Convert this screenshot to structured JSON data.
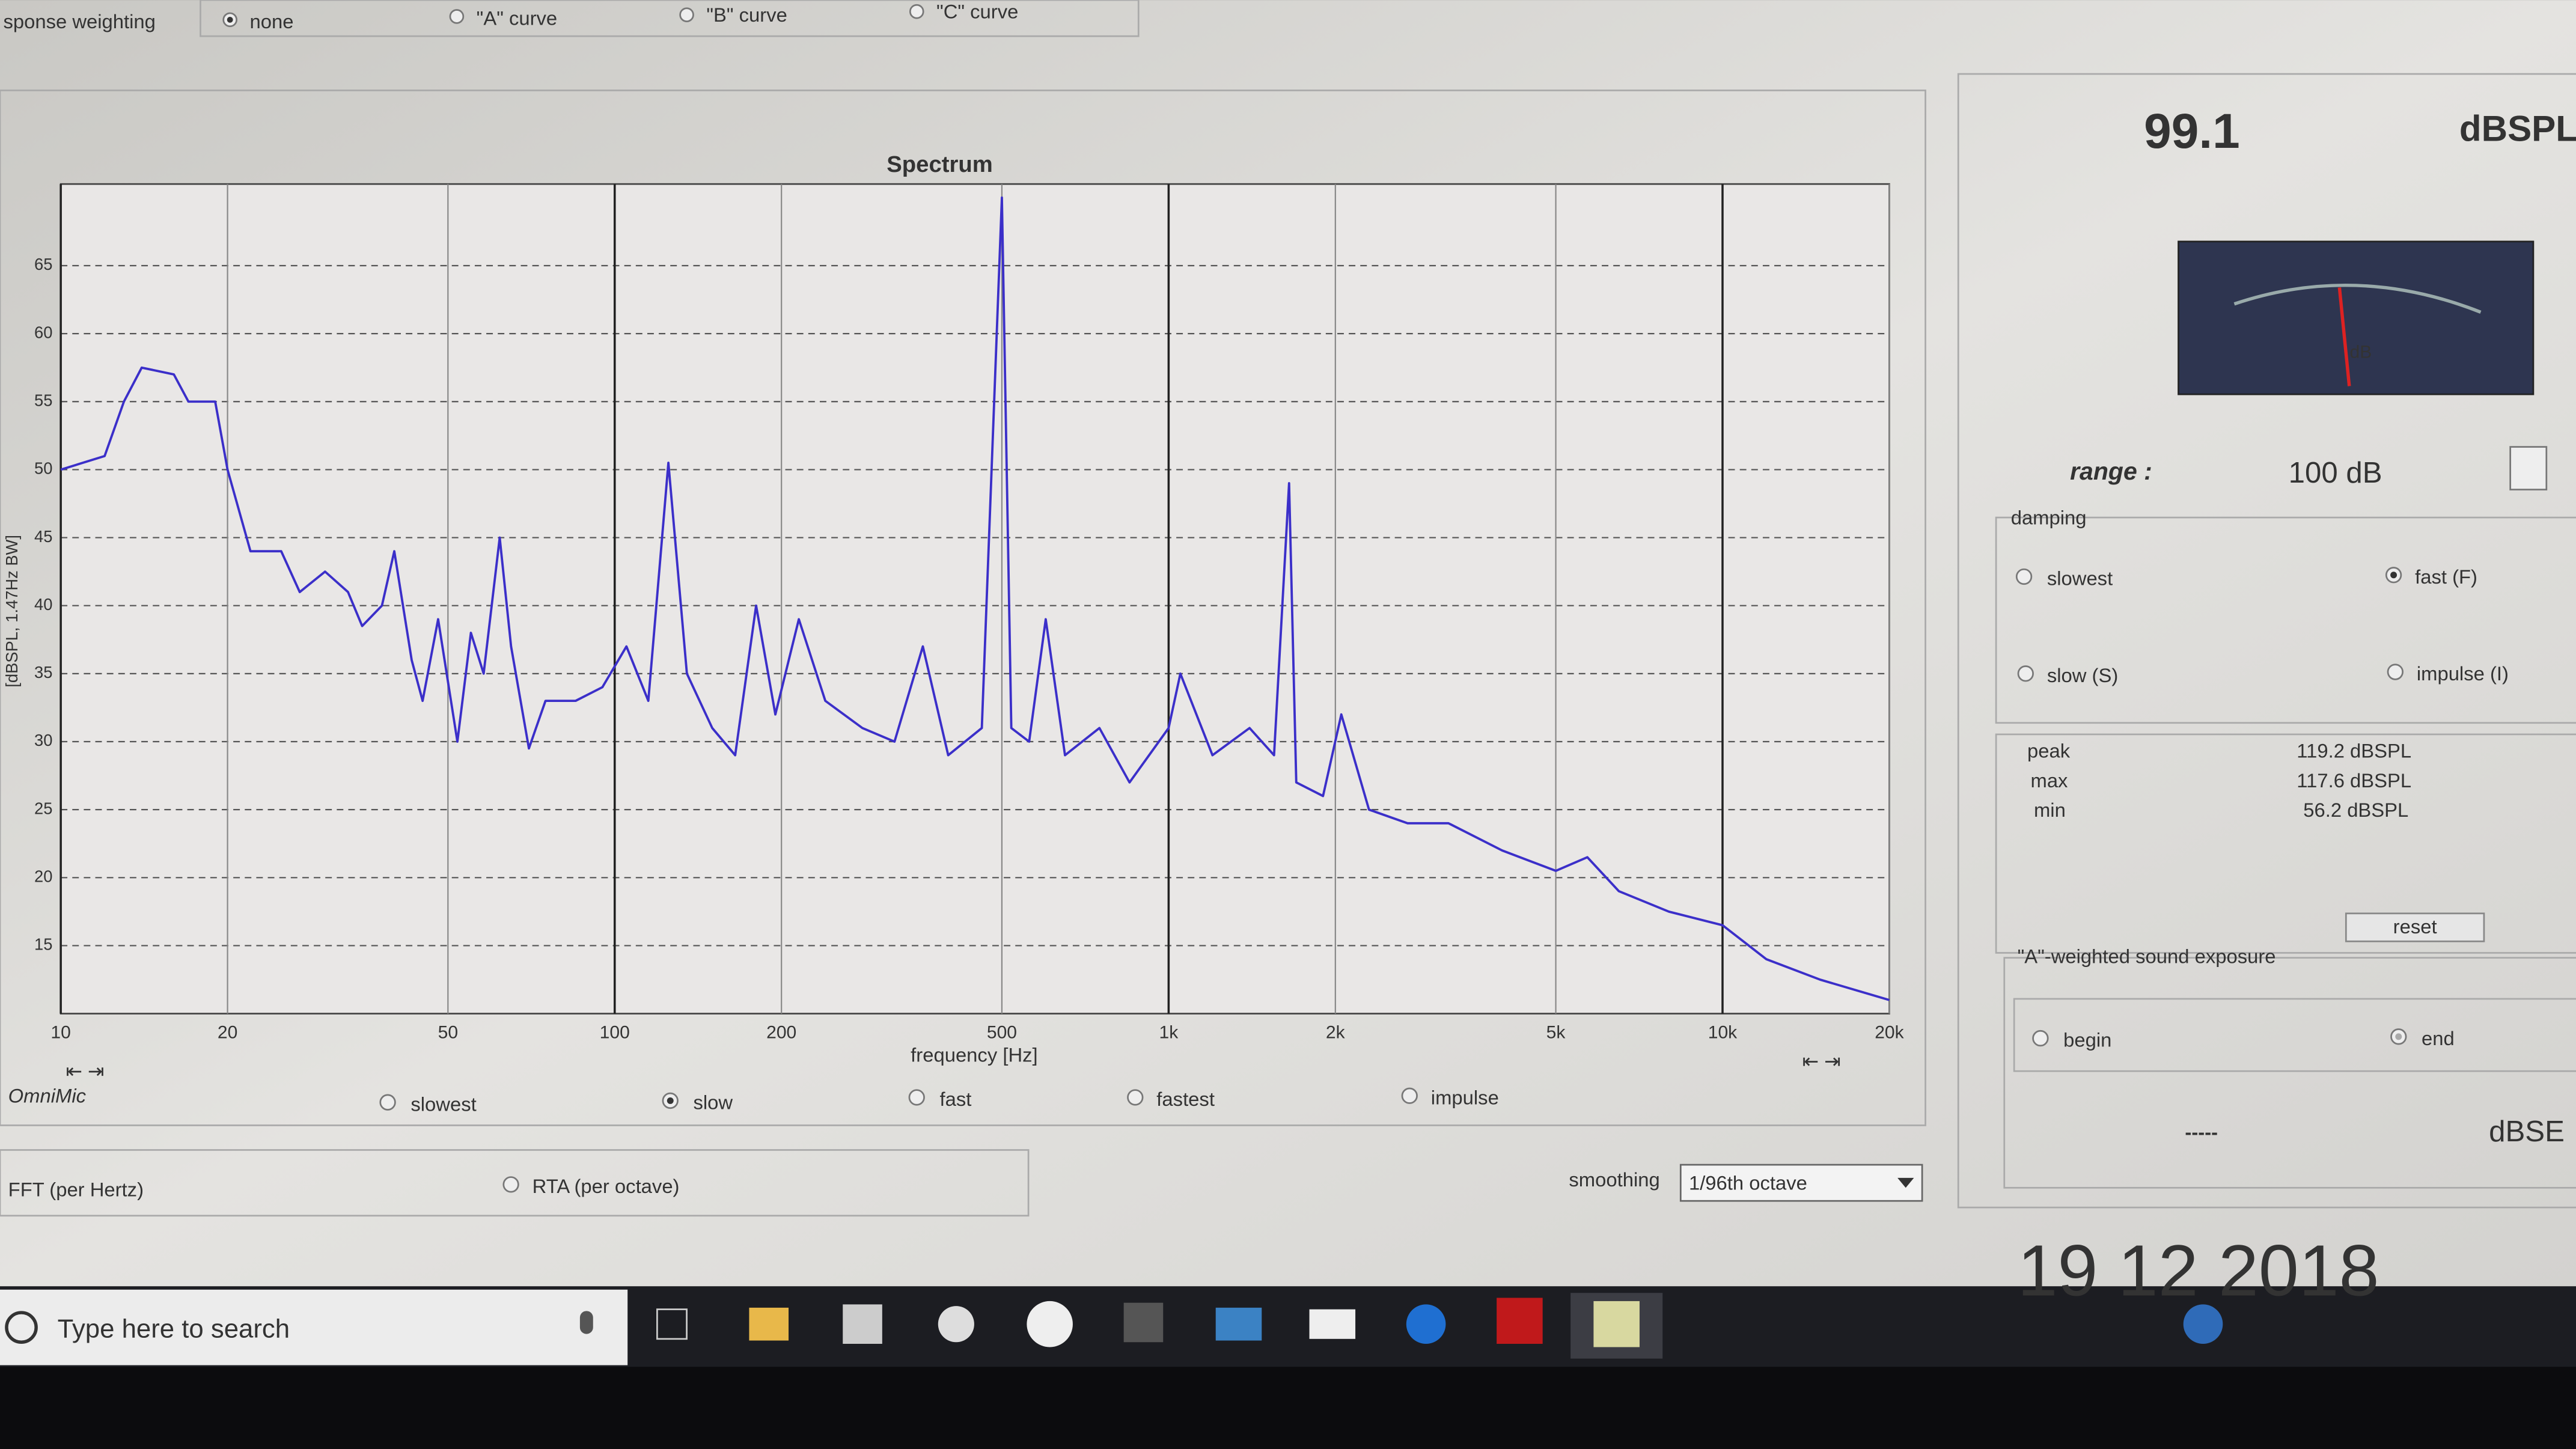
{
  "weighting": {
    "label": "sponse weighting",
    "options": [
      "none",
      "\"A\" curve",
      "\"B\" curve",
      "\"C\" curve"
    ]
  },
  "chart_data": {
    "type": "line",
    "title": "Spectrum",
    "x_label": "frequency [Hz]",
    "y_label": "[dBSPL, 1.47Hz BW]",
    "x_scale": "log",
    "grid": true,
    "xlim": [
      10,
      20000
    ],
    "ylim": [
      10,
      71
    ],
    "xticks": [
      10,
      20,
      50,
      100,
      200,
      500,
      {
        "value": 1000,
        "label": "1k"
      },
      {
        "value": 2000,
        "label": "2k"
      },
      {
        "value": 5000,
        "label": "5k"
      },
      {
        "value": 10000,
        "label": "10k"
      },
      {
        "value": 20000,
        "label": "20k"
      }
    ],
    "yticks": [
      15,
      20,
      25,
      30,
      35,
      40,
      45,
      50,
      55,
      60,
      65
    ],
    "x": [
      10,
      12,
      13,
      14,
      16,
      17,
      19,
      20,
      22,
      25,
      27,
      30,
      33,
      35,
      38,
      40,
      43,
      45,
      48,
      52,
      55,
      58,
      62,
      65,
      70,
      75,
      85,
      95,
      105,
      115,
      125,
      135,
      150,
      165,
      180,
      195,
      215,
      240,
      280,
      320,
      360,
      400,
      460,
      500,
      520,
      560,
      600,
      650,
      750,
      850,
      1000,
      1050,
      1200,
      1400,
      1550,
      1650,
      1700,
      1900,
      2050,
      2300,
      2700,
      3200,
      4000,
      5000,
      5700,
      6500,
      8000,
      10000,
      12000,
      15000,
      20000
    ],
    "series": [
      {
        "color": "#3b2fc9",
        "values": [
          50,
          51,
          55,
          57.5,
          57,
          55,
          55,
          50,
          44,
          44,
          41,
          42.5,
          41,
          38.5,
          40,
          44,
          36,
          33,
          39,
          30,
          38,
          35,
          45,
          37,
          29.5,
          33,
          33,
          34,
          37,
          33,
          50.5,
          35,
          31,
          29,
          40,
          32,
          39,
          33,
          31,
          30,
          37,
          29,
          31,
          70,
          31,
          30,
          39,
          29,
          31,
          27,
          31,
          35,
          29,
          31,
          29,
          49,
          27,
          26,
          32,
          25,
          24,
          24,
          22,
          20.5,
          21.5,
          19,
          17.5,
          16.5,
          14,
          12.5,
          11
        ]
      }
    ]
  },
  "chart_controls": {
    "device": "OmniMic",
    "averaging": [
      "slowest",
      "slow",
      "fast",
      "fastest",
      "impulse"
    ],
    "modes": [
      "FFT (per Hertz)",
      "RTA (per octave)"
    ],
    "smoothing_label": "smoothing",
    "smoothing": "1/96th octave"
  },
  "meter": {
    "value": "99.1",
    "unit": "dBSPL",
    "dial_unit": "dB",
    "range_label": "range :",
    "range": "100 dB",
    "damping_label": "damping",
    "damping": [
      "slowest",
      "fast (F)",
      "slow (S)",
      "impulse (I)"
    ],
    "stats": [
      [
        "peak",
        "119.2 dBSPL"
      ],
      [
        "max",
        "117.6 dBSPL"
      ],
      [
        "min",
        "56.2 dBSPL"
      ]
    ],
    "reset": "reset",
    "exposure_label": "\"A\"-weighted sound exposure",
    "exposure_options": [
      "begin",
      "end"
    ],
    "exposure_value": "-----",
    "exposure_unit": "dBSE"
  },
  "taskbar": {
    "search": "Type here to search"
  },
  "timestamp": "19 12 2018"
}
